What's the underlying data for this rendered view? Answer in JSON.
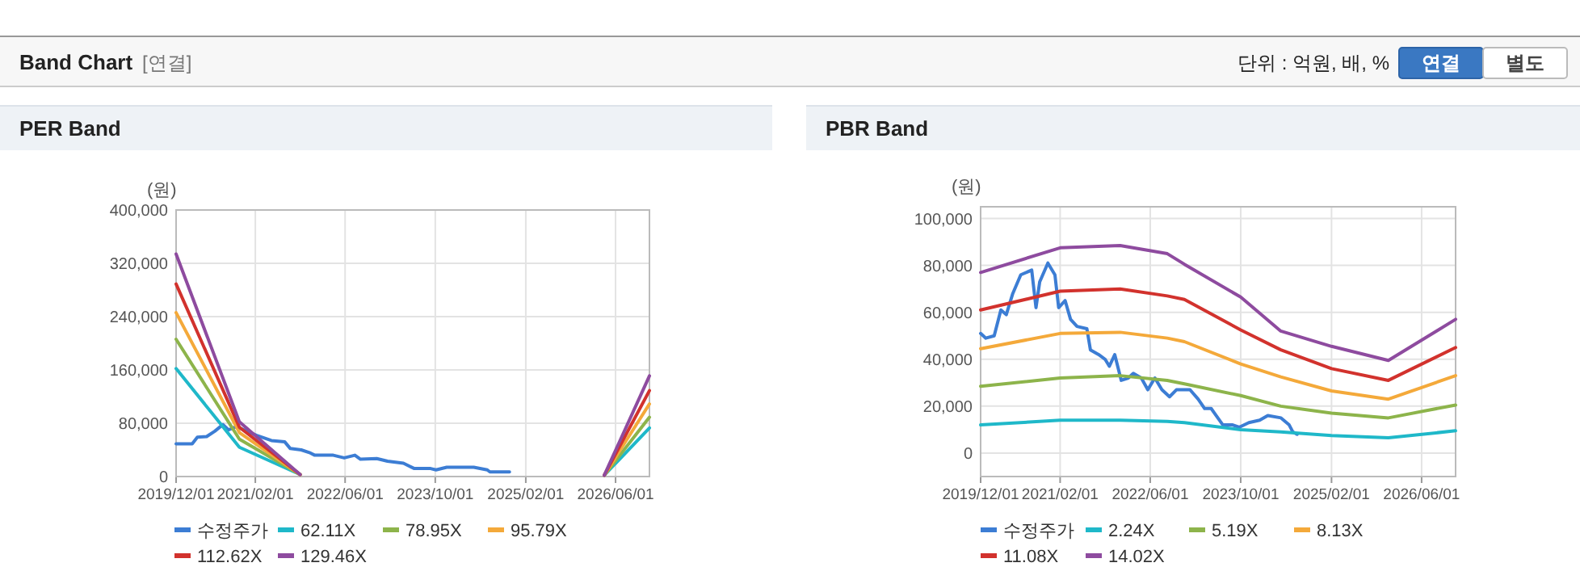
{
  "chart_data": [
    {
      "type": "other",
      "title": "Band Chart",
      "subtitle": "[연결]",
      "annotations": [
        "단위 : 억원, 배, %",
        "연결",
        "별도"
      ]
    },
    {
      "type": "line",
      "title": "PER Band",
      "ylabel": "(원)",
      "xlim": [
        "2019-12-01",
        "2026-12-01"
      ],
      "xticks": [
        {
          "value": "2019-12-01",
          "label": "2019/12/01"
        },
        {
          "value": "2021-02-01",
          "label": "2021/02/01"
        },
        {
          "value": "2022-06-01",
          "label": "2022/06/01"
        },
        {
          "value": "2023-10-01",
          "label": "2023/10/01"
        },
        {
          "value": "2025-02-01",
          "label": "2025/02/01"
        },
        {
          "value": "2026-06-01",
          "label": "2026/06/01"
        }
      ],
      "ylim": [
        0,
        400000
      ],
      "yticks": [
        {
          "value": 0,
          "label": "0"
        },
        {
          "value": 80000,
          "label": "80,000"
        },
        {
          "value": 160000,
          "label": "160,000"
        },
        {
          "value": 240000,
          "label": "240,000"
        },
        {
          "value": 320000,
          "label": "320,000"
        },
        {
          "value": 400000,
          "label": "400,000"
        }
      ],
      "grid": true,
      "legend": "bottom",
      "line_style": "solid",
      "marker": "none",
      "series": [
        {
          "name": "수정주가",
          "color": "#3c7dd4",
          "x": [
            "2019-12-01",
            "2020-02-26",
            "2020-03-25",
            "2020-05-14",
            "2020-06-27",
            "2020-08-10",
            "2020-09-09",
            "2020-10-22",
            "2021-02-06",
            "2021-04-29",
            "2021-07-10",
            "2021-08-09",
            "2021-10-07",
            "2021-11-20",
            "2021-12-19",
            "2022-03-29",
            "2022-05-27",
            "2022-07-24",
            "2022-08-23",
            "2022-11-19",
            "2023-01-16",
            "2023-04-12",
            "2023-06-10",
            "2023-09-06",
            "2023-10-05",
            "2023-12-02",
            "2024-04-26",
            "2024-07-08",
            "2024-07-22",
            "2024-11-05"
          ],
          "values": [
            49000,
            49000,
            59000,
            60000,
            68000,
            78000,
            70000,
            75000,
            62000,
            54000,
            52000,
            42000,
            40000,
            36000,
            32000,
            32000,
            28000,
            32000,
            26000,
            27000,
            23000,
            20000,
            12000,
            12000,
            10000,
            14000,
            14000,
            10000,
            7000,
            7000
          ]
        },
        {
          "name": "62.11X",
          "color": "#1fb8c9",
          "x": [
            "2019-12-01",
            "2020-11-07",
            "2021-10-01",
            "2024-01-01",
            "2026-04-01",
            "2026-12-01"
          ],
          "values": [
            162000,
            44000,
            3000,
            null,
            2000,
            73000
          ]
        },
        {
          "name": "78.95X",
          "color": "#8db44b",
          "x": [
            "2019-12-01",
            "2020-11-07",
            "2021-10-01",
            "2024-01-01",
            "2026-04-01",
            "2026-12-01"
          ],
          "values": [
            206000,
            56000,
            3000,
            null,
            2000,
            89000
          ]
        },
        {
          "name": "95.79X",
          "color": "#f4a93a",
          "x": [
            "2019-12-01",
            "2020-11-07",
            "2021-10-01",
            "2024-01-01",
            "2026-04-01",
            "2026-12-01"
          ],
          "values": [
            246000,
            66000,
            3000,
            null,
            2000,
            109000
          ]
        },
        {
          "name": "112.62X",
          "color": "#d2322d",
          "x": [
            "2019-12-01",
            "2020-11-07",
            "2021-10-01",
            "2024-01-01",
            "2026-04-01",
            "2026-12-01"
          ],
          "values": [
            289000,
            74000,
            3000,
            null,
            2000,
            129000
          ]
        },
        {
          "name": "129.46X",
          "color": "#8e4b9f",
          "x": [
            "2019-12-01",
            "2020-11-07",
            "2021-10-01",
            "2024-01-01",
            "2026-04-01",
            "2026-12-01"
          ],
          "values": [
            334000,
            82000,
            3000,
            null,
            2000,
            151000
          ]
        }
      ]
    },
    {
      "type": "line",
      "title": "PBR Band",
      "ylabel": "(원)",
      "xlim": [
        "2019-12-01",
        "2026-12-01"
      ],
      "xticks": [
        {
          "value": "2019-12-01",
          "label": "2019/12/01"
        },
        {
          "value": "2021-02-01",
          "label": "2021/02/01"
        },
        {
          "value": "2022-06-01",
          "label": "2022/06/01"
        },
        {
          "value": "2023-10-01",
          "label": "2023/10/01"
        },
        {
          "value": "2025-02-01",
          "label": "2025/02/01"
        },
        {
          "value": "2026-06-01",
          "label": "2026/06/01"
        }
      ],
      "ylim": [
        -10000,
        105000
      ],
      "yticks": [
        {
          "value": 0,
          "label": "0"
        },
        {
          "value": 20000,
          "label": "20,000"
        },
        {
          "value": 40000,
          "label": "40,000"
        },
        {
          "value": 60000,
          "label": "60,000"
        },
        {
          "value": 80000,
          "label": "80,000"
        },
        {
          "value": 100000,
          "label": "100,000"
        }
      ],
      "grid": true,
      "legend": "bottom",
      "line_style": "solid",
      "marker": "none",
      "series": [
        {
          "name": "수정주가",
          "color": "#3c7dd4",
          "x": [
            "2019-12-01",
            "2019-12-29",
            "2020-02-12",
            "2020-03-19",
            "2020-04-17",
            "2020-05-22",
            "2020-07-04",
            "2020-09-01",
            "2020-09-24",
            "2020-10-14",
            "2020-11-27",
            "2021-01-04",
            "2021-01-24",
            "2021-02-28",
            "2021-03-29",
            "2021-05-03",
            "2021-06-25",
            "2021-07-14",
            "2021-08-27",
            "2021-10-01",
            "2021-10-24",
            "2021-11-22",
            "2021-12-27",
            "2022-02-03",
            "2022-03-02",
            "2022-04-14",
            "2022-05-19",
            "2022-06-26",
            "2022-08-03",
            "2022-09-13",
            "2022-10-20",
            "2023-01-01",
            "2023-02-14",
            "2023-03-21",
            "2023-04-25",
            "2023-06-27",
            "2023-08-19",
            "2023-09-23",
            "2023-11-14",
            "2024-01-11",
            "2024-02-24",
            "2024-05-05",
            "2024-06-18",
            "2024-07-08",
            "2024-07-31"
          ],
          "values": [
            51000,
            49000,
            50000,
            61000,
            59000,
            68000,
            76000,
            78000,
            62000,
            73000,
            81000,
            76000,
            62000,
            65000,
            57000,
            54000,
            53000,
            44000,
            42000,
            40000,
            37000,
            42000,
            31000,
            32000,
            34000,
            32000,
            27000,
            32000,
            27000,
            24000,
            27000,
            27000,
            23000,
            19000,
            19000,
            12000,
            12000,
            11000,
            13000,
            14000,
            16000,
            15000,
            12000,
            9000,
            8000
          ]
        },
        {
          "name": "2.24X",
          "color": "#1fb8c9",
          "x": [
            "2019-12-01",
            "2021-02-01",
            "2021-12-21",
            "2022-09-01",
            "2022-12-02",
            "2023-10-01",
            "2024-05-04",
            "2025-02-01",
            "2025-12-04",
            "2026-12-01"
          ],
          "values": [
            12000,
            14000,
            14000,
            13500,
            13000,
            10000,
            9000,
            7500,
            6500,
            9500
          ]
        },
        {
          "name": "5.19X",
          "color": "#8db44b",
          "x": [
            "2019-12-01",
            "2021-02-01",
            "2021-12-21",
            "2022-09-01",
            "2022-12-02",
            "2023-10-01",
            "2024-05-04",
            "2025-02-01",
            "2025-12-04",
            "2026-12-01"
          ],
          "values": [
            28500,
            32000,
            33000,
            31000,
            29500,
            24500,
            20000,
            17000,
            15000,
            20500
          ]
        },
        {
          "name": "8.13X",
          "color": "#f4a93a",
          "x": [
            "2019-12-01",
            "2021-02-01",
            "2021-12-21",
            "2022-09-01",
            "2022-12-02",
            "2023-10-01",
            "2024-05-04",
            "2025-02-01",
            "2025-12-04",
            "2026-12-01"
          ],
          "values": [
            44500,
            51000,
            51500,
            49000,
            47500,
            38000,
            32500,
            26500,
            23000,
            33000
          ]
        },
        {
          "name": "11.08X",
          "color": "#d2322d",
          "x": [
            "2019-12-01",
            "2021-02-01",
            "2021-12-21",
            "2022-09-01",
            "2022-12-02",
            "2023-10-01",
            "2024-05-04",
            "2025-02-01",
            "2025-12-04",
            "2026-12-01"
          ],
          "values": [
            61000,
            69000,
            70000,
            67000,
            65500,
            52500,
            44000,
            36000,
            31000,
            45000
          ]
        },
        {
          "name": "14.02X",
          "color": "#8e4b9f",
          "x": [
            "2019-12-01",
            "2021-02-01",
            "2021-12-21",
            "2022-09-01",
            "2022-12-02",
            "2023-10-01",
            "2024-05-04",
            "2025-02-01",
            "2025-12-04",
            "2026-12-01"
          ],
          "values": [
            77000,
            87500,
            88500,
            85000,
            80500,
            66500,
            52000,
            45500,
            39500,
            57000
          ]
        }
      ]
    }
  ]
}
